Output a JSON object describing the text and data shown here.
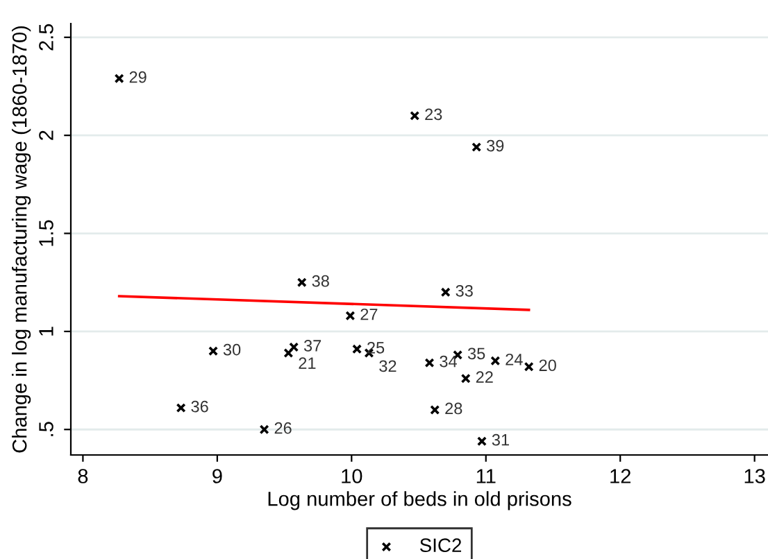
{
  "chart_data": {
    "type": "scatter",
    "xlabel": "Log number of beds in old prisons",
    "ylabel": "Change in log manufacturing wage (1860-1870)",
    "xlim": [
      7.91,
      13.1
    ],
    "xticks": [
      8,
      9,
      10,
      11,
      12,
      13
    ],
    "ylim": [
      0.37,
      2.57
    ],
    "yticks": [
      {
        "value": 0.5,
        "label": ".5"
      },
      1,
      1.5,
      2,
      2.5
    ],
    "grid": "y",
    "legend": "bottom",
    "series": [
      {
        "name": "SIC2",
        "marker": "cross",
        "color": "#000000",
        "x": [
          8.27,
          10.47,
          10.93,
          9.63,
          10.7,
          9.99,
          8.97,
          9.57,
          9.53,
          10.04,
          10.13,
          10.79,
          10.58,
          11.07,
          11.32,
          10.85,
          8.73,
          10.62,
          9.35,
          10.97
        ],
        "values": [
          2.29,
          2.1,
          1.94,
          1.25,
          1.2,
          1.08,
          0.9,
          0.92,
          0.89,
          0.91,
          0.89,
          0.88,
          0.84,
          0.85,
          0.82,
          0.76,
          0.61,
          0.6,
          0.5,
          0.44
        ]
      },
      {
        "type": "line",
        "marker": "none",
        "color": "#ff0000",
        "x": [
          8.27,
          11.32
        ],
        "values": [
          1.18,
          1.11
        ]
      }
    ],
    "annotations": [
      {
        "text": "29",
        "x": 8.27,
        "y": 2.29
      },
      {
        "text": "23",
        "x": 10.47,
        "y": 2.1
      },
      {
        "text": "39",
        "x": 10.93,
        "y": 1.94
      },
      {
        "text": "38",
        "x": 9.63,
        "y": 1.25
      },
      {
        "text": "33",
        "x": 10.7,
        "y": 1.2
      },
      {
        "text": "27",
        "x": 9.99,
        "y": 1.08
      },
      {
        "text": "30",
        "x": 8.97,
        "y": 0.9
      },
      {
        "text": "37",
        "x": 9.57,
        "y": 0.92
      },
      {
        "text": "21",
        "x": 9.53,
        "y": 0.89
      },
      {
        "text": "25",
        "x": 10.04,
        "y": 0.91
      },
      {
        "text": "32",
        "x": 10.13,
        "y": 0.89
      },
      {
        "text": "35",
        "x": 10.79,
        "y": 0.88
      },
      {
        "text": "34",
        "x": 10.58,
        "y": 0.84
      },
      {
        "text": "24",
        "x": 11.07,
        "y": 0.85
      },
      {
        "text": "20",
        "x": 11.32,
        "y": 0.82
      },
      {
        "text": "22",
        "x": 10.85,
        "y": 0.76
      },
      {
        "text": "36",
        "x": 8.73,
        "y": 0.61
      },
      {
        "text": "28",
        "x": 10.62,
        "y": 0.6
      },
      {
        "text": "26",
        "x": 9.35,
        "y": 0.5
      },
      {
        "text": "31",
        "x": 10.97,
        "y": 0.44
      }
    ]
  }
}
